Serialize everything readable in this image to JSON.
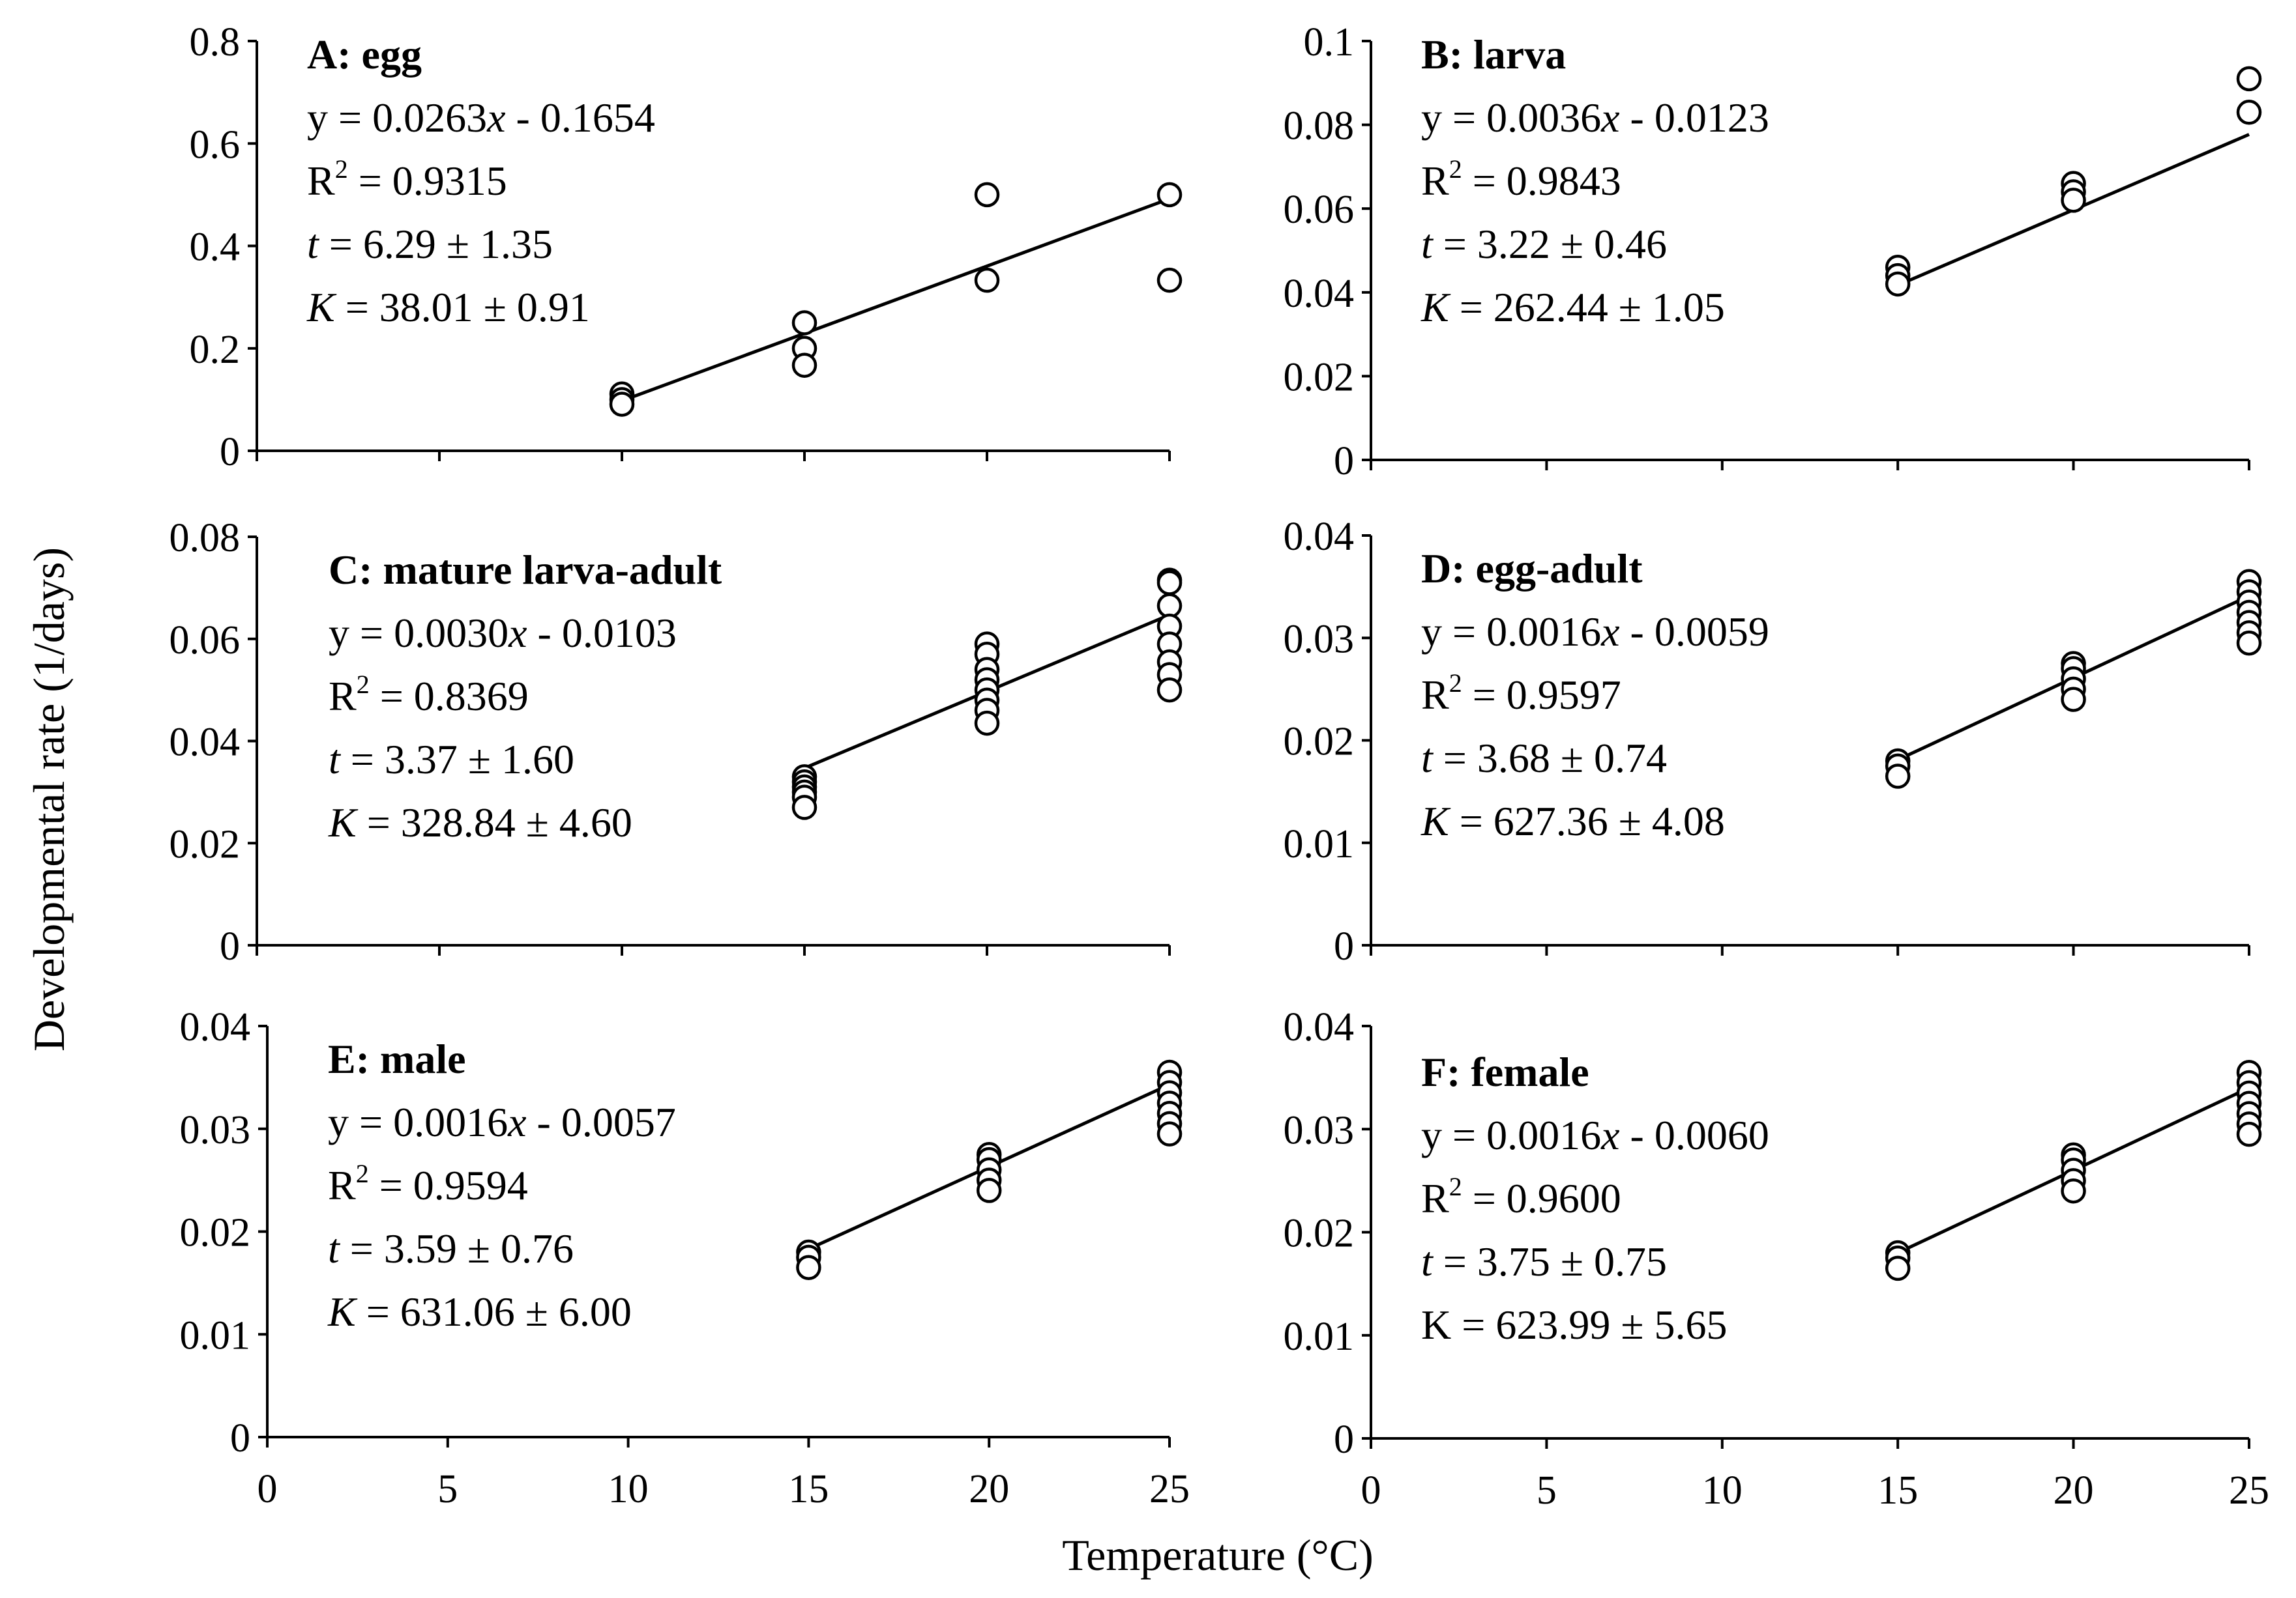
{
  "axes_titles": {
    "xlabel": "Temperature (°C)",
    "ylabel": "Developmental rate (1/days)"
  },
  "chart_data": [
    {
      "type": "scatter",
      "panel": "A",
      "title": "A: egg",
      "annotations": {
        "eq_prefix": "y = 0.0263",
        "eq_suffix": " - 0.1654",
        "r2": " = 0.9315",
        "t_val": " = 6.29 ± 1.35",
        "k_val": " = 38.01 ± 0.91"
      },
      "fit": {
        "slope": 0.0263,
        "intercept": -0.1654,
        "x_range": [
          10,
          25
        ]
      },
      "xlim": [
        0,
        25
      ],
      "ylim": [
        0,
        0.8
      ],
      "x_ticks": [],
      "y_ticks": [
        "0",
        "0.2",
        "0.4",
        "0.6",
        "0.8"
      ],
      "y_tick_values": [
        0,
        0.2,
        0.4,
        0.6,
        0.8
      ],
      "points": [
        [
          10,
          0.111
        ],
        [
          10,
          0.1
        ],
        [
          10,
          0.091
        ],
        [
          15,
          0.25
        ],
        [
          15,
          0.2
        ],
        [
          15,
          0.167
        ],
        [
          20,
          0.5
        ],
        [
          20,
          0.333
        ],
        [
          25,
          0.5
        ],
        [
          25,
          0.333
        ]
      ]
    },
    {
      "type": "scatter",
      "panel": "B",
      "title": "B: larva",
      "annotations": {
        "eq_prefix": "y = 0.0036",
        "eq_suffix": " - 0.0123",
        "r2": " = 0.9843",
        "t_val": " = 3.22 ± 0.46",
        "k_val": " = 262.44 ± 1.05"
      },
      "fit": {
        "slope": 0.0036,
        "intercept": -0.0123,
        "x_range": [
          15,
          25
        ]
      },
      "xlim": [
        0,
        25
      ],
      "ylim": [
        0,
        0.1
      ],
      "x_ticks": [],
      "y_ticks": [
        "0",
        "0.02",
        "0.04",
        "0.06",
        "0.08",
        "0.1"
      ],
      "y_tick_values": [
        0,
        0.02,
        0.04,
        0.06,
        0.08,
        0.1
      ],
      "points": [
        [
          15,
          0.046
        ],
        [
          15,
          0.044
        ],
        [
          15,
          0.042
        ],
        [
          20,
          0.066
        ],
        [
          20,
          0.064
        ],
        [
          20,
          0.062
        ],
        [
          25,
          0.091
        ],
        [
          25,
          0.083
        ]
      ]
    },
    {
      "type": "scatter",
      "panel": "C",
      "title": "C: mature larva-adult",
      "annotations": {
        "eq_prefix": "y = 0.0030",
        "eq_suffix": " - 0.0103",
        "r2": " = 0.8369",
        "t_val": " = 3.37 ± 1.60",
        "k_val": " = 328.84 ± 4.60"
      },
      "fit": {
        "slope": 0.003,
        "intercept": -0.0103,
        "x_range": [
          15,
          25
        ]
      },
      "xlim": [
        0,
        25
      ],
      "ylim": [
        0,
        0.08
      ],
      "x_ticks": [],
      "y_ticks": [
        "0",
        "0.02",
        "0.04",
        "0.06",
        "0.08"
      ],
      "y_tick_values": [
        0,
        0.02,
        0.04,
        0.06,
        0.08
      ],
      "points": [
        [
          15,
          0.033
        ],
        [
          15,
          0.032
        ],
        [
          15,
          0.031
        ],
        [
          15,
          0.03
        ],
        [
          15,
          0.029
        ],
        [
          15,
          0.027
        ],
        [
          20,
          0.059
        ],
        [
          20,
          0.057
        ],
        [
          20,
          0.054
        ],
        [
          20,
          0.052
        ],
        [
          20,
          0.05
        ],
        [
          20,
          0.048
        ],
        [
          20,
          0.046
        ],
        [
          20,
          0.0435
        ],
        [
          25,
          0.0715
        ],
        [
          25,
          0.071
        ],
        [
          25,
          0.0665
        ],
        [
          25,
          0.0625
        ],
        [
          25,
          0.059
        ],
        [
          25,
          0.0555
        ],
        [
          25,
          0.053
        ],
        [
          25,
          0.05
        ]
      ]
    },
    {
      "type": "scatter",
      "panel": "D",
      "title": "D: egg-adult",
      "annotations": {
        "eq_prefix": "y = 0.0016",
        "eq_suffix": " - 0.0059",
        "r2": " = 0.9597",
        "t_val": " = 3.68 ± 0.74",
        "k_val": " = 627.36 ± 4.08"
      },
      "fit": {
        "slope": 0.0016,
        "intercept": -0.0059,
        "x_range": [
          15,
          25
        ]
      },
      "xlim": [
        0,
        25
      ],
      "ylim": [
        0,
        0.04
      ],
      "x_ticks": [],
      "y_ticks": [
        "0",
        "0.01",
        "0.02",
        "0.03",
        "0.04"
      ],
      "y_tick_values": [
        0,
        0.01,
        0.02,
        0.03,
        0.04
      ],
      "points": [
        [
          15,
          0.018
        ],
        [
          15,
          0.0175
        ],
        [
          15,
          0.0165
        ],
        [
          20,
          0.0275
        ],
        [
          20,
          0.027
        ],
        [
          20,
          0.026
        ],
        [
          20,
          0.025
        ],
        [
          20,
          0.024
        ],
        [
          25,
          0.0355
        ],
        [
          25,
          0.0345
        ],
        [
          25,
          0.0335
        ],
        [
          25,
          0.0325
        ],
        [
          25,
          0.0315
        ],
        [
          25,
          0.0305
        ],
        [
          25,
          0.0295
        ]
      ]
    },
    {
      "type": "scatter",
      "panel": "E",
      "title": "E: male",
      "annotations": {
        "eq_prefix": "y = 0.0016",
        "eq_suffix": " - 0.0057",
        "r2": " = 0.9594",
        "t_val": " = 3.59 ± 0.76",
        "k_val": " = 631.06 ± 6.00"
      },
      "fit": {
        "slope": 0.0016,
        "intercept": -0.0057,
        "x_range": [
          15,
          25
        ]
      },
      "xlim": [
        0,
        25
      ],
      "ylim": [
        0,
        0.04
      ],
      "x_ticks": [
        "0",
        "5",
        "10",
        "15",
        "20",
        "25"
      ],
      "y_ticks": [
        "0",
        "0.01",
        "0.02",
        "0.03",
        "0.04"
      ],
      "y_tick_values": [
        0,
        0.01,
        0.02,
        0.03,
        0.04
      ],
      "points": [
        [
          15,
          0.018
        ],
        [
          15,
          0.0175
        ],
        [
          15,
          0.0165
        ],
        [
          20,
          0.0275
        ],
        [
          20,
          0.027
        ],
        [
          20,
          0.026
        ],
        [
          20,
          0.025
        ],
        [
          20,
          0.024
        ],
        [
          25,
          0.0355
        ],
        [
          25,
          0.0345
        ],
        [
          25,
          0.0335
        ],
        [
          25,
          0.0325
        ],
        [
          25,
          0.0315
        ],
        [
          25,
          0.0305
        ],
        [
          25,
          0.0295
        ]
      ]
    },
    {
      "type": "scatter",
      "panel": "F",
      "title": "F: female",
      "annotations": {
        "eq_prefix": "y = 0.0016",
        "eq_suffix": " - 0.0060",
        "r2": " = 0.9600",
        "t_val": " = 3.75 ± 0.75",
        "k_val": " = 623.99 ± 5.65"
      },
      "fit": {
        "slope": 0.0016,
        "intercept": -0.006,
        "x_range": [
          15,
          25
        ]
      },
      "xlim": [
        0,
        25
      ],
      "ylim": [
        0,
        0.04
      ],
      "x_ticks": [
        "0",
        "5",
        "10",
        "15",
        "20",
        "25"
      ],
      "y_ticks": [
        "0",
        "0.01",
        "0.02",
        "0.03",
        "0.04"
      ],
      "y_tick_values": [
        0,
        0.01,
        0.02,
        0.03,
        0.04
      ],
      "points": [
        [
          15,
          0.018
        ],
        [
          15,
          0.0175
        ],
        [
          15,
          0.0165
        ],
        [
          20,
          0.0275
        ],
        [
          20,
          0.027
        ],
        [
          20,
          0.026
        ],
        [
          20,
          0.025
        ],
        [
          20,
          0.024
        ],
        [
          25,
          0.0355
        ],
        [
          25,
          0.0345
        ],
        [
          25,
          0.0335
        ],
        [
          25,
          0.0325
        ],
        [
          25,
          0.0315
        ],
        [
          25,
          0.0305
        ],
        [
          25,
          0.0295
        ]
      ]
    }
  ]
}
